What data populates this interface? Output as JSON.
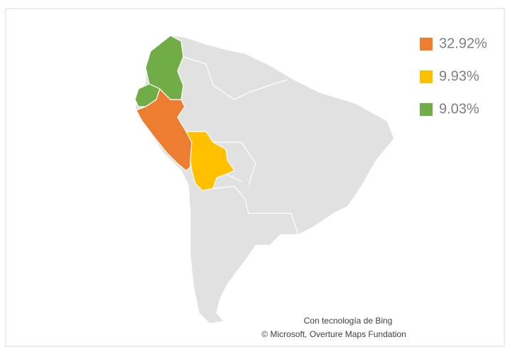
{
  "chart_data": {
    "type": "map",
    "legend": [
      {
        "value": 32.92,
        "label": "32.92%",
        "color": "#ed7d31"
      },
      {
        "value": 9.93,
        "label": "9.93%",
        "color": "#ffc000"
      },
      {
        "value": 9.03,
        "label": "9.03%",
        "color": "#70ad47"
      }
    ],
    "attribution": [
      "Con tecnología de Bing",
      "© Microsoft, Overture Maps Fundation"
    ]
  }
}
